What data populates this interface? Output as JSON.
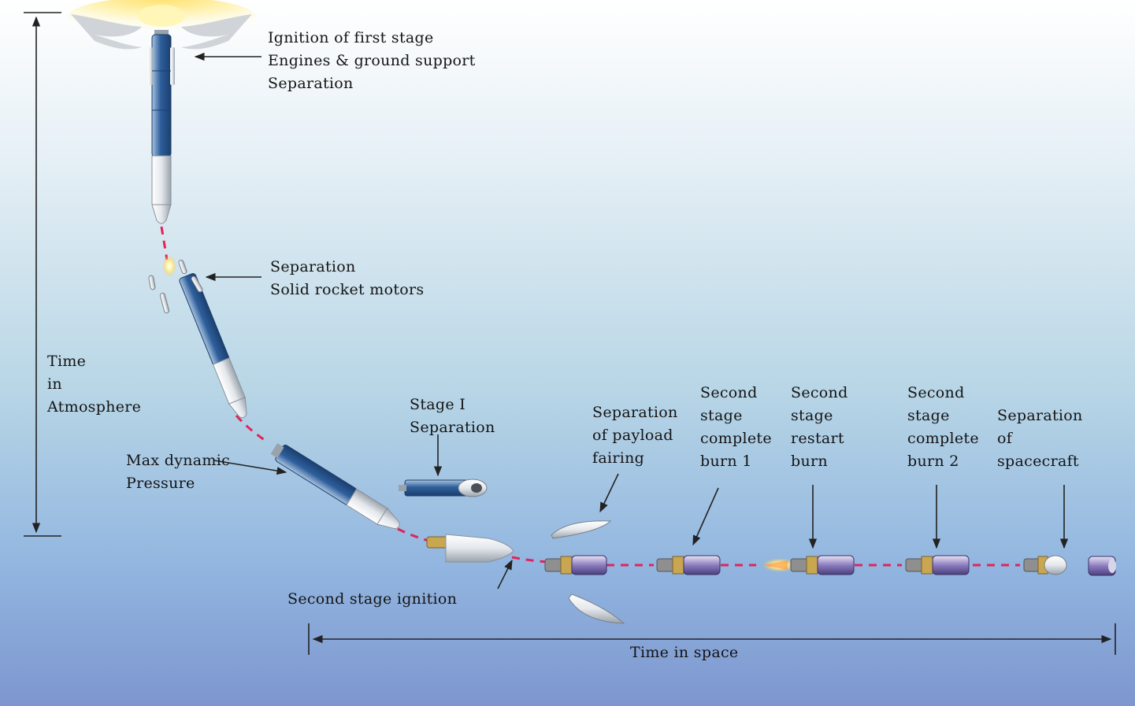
{
  "diagram": {
    "labels": {
      "ignition": "Ignition of first stage\nEngines & ground support\nSeparation",
      "booster_sep": "Separation\nSolid rocket motors",
      "atmo_time": "Time\nin\nAtmosphere",
      "stage1_sep": "Stage I\nSeparation",
      "max_q": "Max dynamic\nPressure",
      "second_ignition": "Second stage ignition",
      "fairing_sep": "Separation\nof payload\nfairing",
      "burn1_complete": "Second\nstage\ncomplete\nburn 1",
      "burn2_restart": "Second\nstage\nrestart\nburn",
      "burn2_complete": "Second\nstage\ncomplete\nburn 2",
      "spacecraft_sep": "Separation\nof\nspacecraft",
      "space_time": "Time in space"
    },
    "colors": {
      "trajectory": "#e0245a",
      "rocket_body": "#2e5f9c",
      "rocket_white": "#e4e8ec",
      "flame": "#ffd84a",
      "arrow": "#222222"
    }
  }
}
